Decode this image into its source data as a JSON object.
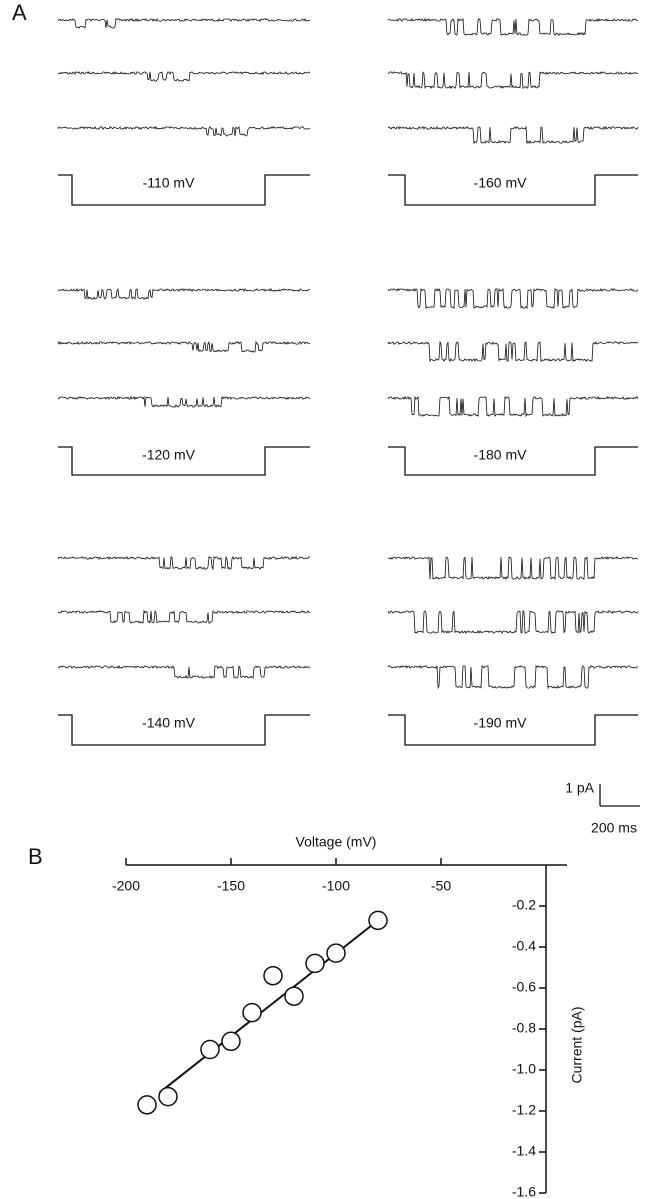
{
  "panel_a": {
    "label": "A",
    "protocols": [
      "-110 mV",
      "-160 mV",
      "-120 mV",
      "-180 mV",
      "-140 mV",
      "-190 mV"
    ],
    "scale_bar": {
      "current": "1 pA",
      "time": "200 ms"
    }
  },
  "chart_data": {
    "type": "scatter",
    "panel_label": "B",
    "x_label": "Voltage (mV)",
    "y_label": "Current (pA)",
    "x": [
      -190,
      -180,
      -160,
      -150,
      -140,
      -130,
      -120,
      -110,
      -100,
      -80
    ],
    "values": [
      -1.17,
      -1.13,
      -0.9,
      -0.86,
      -0.72,
      -0.54,
      -0.64,
      -0.48,
      -0.43,
      -0.27
    ],
    "fit": {
      "x": [
        -184,
        -80
      ],
      "y": [
        -1.11,
        -0.27
      ]
    },
    "xlim": [
      -200,
      10
    ],
    "xticks": [
      -200,
      -150,
      -100,
      -50
    ],
    "ylim": [
      -1.6,
      0
    ],
    "yticks": [
      -0.2,
      -0.4,
      -0.6,
      -0.8,
      {
        "value": -1,
        "label": "-1.0"
      },
      -1.2,
      -1.4,
      -1.6
    ]
  }
}
